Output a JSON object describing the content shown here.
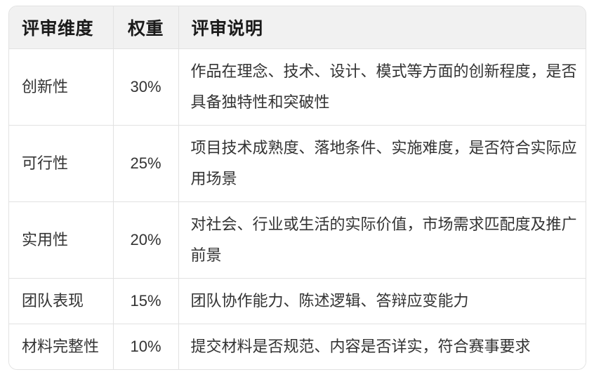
{
  "page": {
    "background": "#ffffff"
  },
  "table": {
    "columns": [
      {
        "label": "评审维度"
      },
      {
        "label": "权重"
      },
      {
        "label": "评审说明"
      }
    ],
    "rows": [
      {
        "dimension": "创新性",
        "weight": "30%",
        "description": "作品在理念、技术、设计、模式等方面的创新程度，是否具备独特性和突破性"
      },
      {
        "dimension": "可行性",
        "weight": "25%",
        "description": "项目技术成熟度、落地条件、实施难度，是否符合实际应用场景"
      },
      {
        "dimension": "实用性",
        "weight": "20%",
        "description": "对社会、行业或生活的实际价值，市场需求匹配度及推广前景"
      },
      {
        "dimension": "团队表现",
        "weight": "15%",
        "description": "团队协作能力、陈述逻辑、答辩应变能力"
      },
      {
        "dimension": "材料完整性",
        "weight": "10%",
        "description": "提交材料是否规范、内容是否详实，符合赛事要求"
      }
    ],
    "colors": {
      "header_background": "#f1f1f1",
      "border": "#e2e2e2",
      "header_text": "#1a1a1a",
      "body_text": "#333333",
      "row_background": "#ffffff"
    }
  }
}
